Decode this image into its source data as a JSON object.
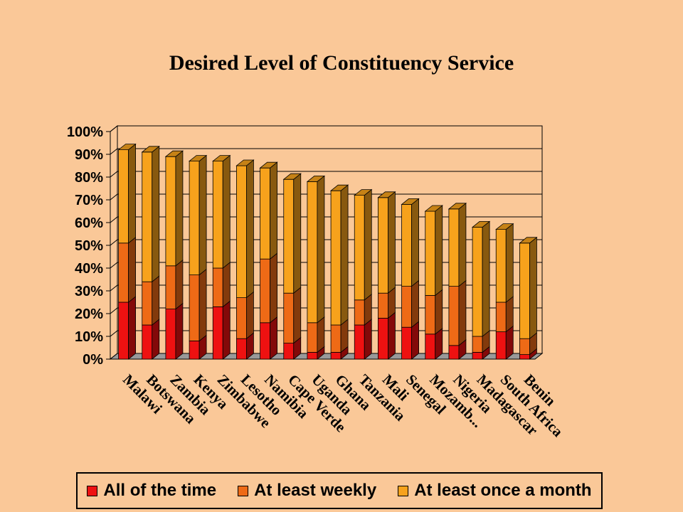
{
  "chart_data": {
    "type": "bar",
    "stacked": true,
    "three_d": true,
    "title": "Desired Level of Constituency Service",
    "xlabel": "",
    "ylabel": "",
    "ylim": [
      0,
      100
    ],
    "y_ticks": [
      "0%",
      "10%",
      "20%",
      "30%",
      "40%",
      "50%",
      "60%",
      "70%",
      "80%",
      "90%",
      "100%"
    ],
    "grid": true,
    "legend_position": "bottom",
    "categories": [
      "Malawi",
      "Botswana",
      "Zambia",
      "Kenya",
      "Zimbabwe",
      "Lesotho",
      "Namibia",
      "Cape Verde",
      "Uganda",
      "Ghana",
      "Tanzania",
      "Mali",
      "Senegal",
      "Mozamb...",
      "Nigeria",
      "Madagascar",
      "South Africa",
      "Benin"
    ],
    "series": [
      {
        "name": "All of the time",
        "color": "#ee1111",
        "values": [
          25,
          15,
          22,
          8,
          23,
          9,
          16,
          7,
          3,
          3,
          15,
          18,
          14,
          11,
          6,
          3,
          12,
          2
        ]
      },
      {
        "name": "At least weekly",
        "color": "#ee6a16",
        "values": [
          26,
          19,
          19,
          29,
          17,
          18,
          28,
          22,
          13,
          12,
          11,
          11,
          18,
          17,
          26,
          7,
          13,
          7
        ]
      },
      {
        "name": "At least once a month",
        "color": "#f7a21c",
        "values": [
          41,
          57,
          48,
          50,
          47,
          58,
          40,
          50,
          62,
          59,
          46,
          42,
          36,
          37,
          34,
          48,
          32,
          42
        ]
      }
    ]
  },
  "legend": {
    "items": [
      {
        "label": "All of the time",
        "color": "#ee1111"
      },
      {
        "label": "At least weekly",
        "color": "#ee6a16"
      },
      {
        "label": "At least once a month",
        "color": "#f7a21c"
      }
    ]
  }
}
